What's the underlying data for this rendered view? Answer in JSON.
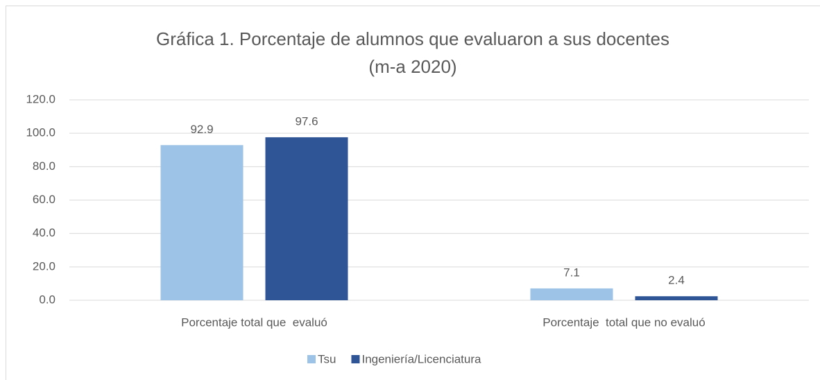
{
  "chart_data": {
    "type": "bar",
    "title": [
      "Gráfica 1. Porcentaje de alumnos que evaluaron a sus docentes",
      "(m-a 2020)"
    ],
    "categories": [
      "Porcentaje total que  evaluó",
      "Porcentaje  total que no evaluó"
    ],
    "series": [
      {
        "name": "Tsu",
        "color": "#9dc3e6",
        "values": [
          92.9,
          7.1
        ]
      },
      {
        "name": "Ingeniería/Licenciatura",
        "color": "#2f5597",
        "values": [
          97.6,
          2.4
        ]
      }
    ],
    "ylim": [
      0,
      120
    ],
    "yticks": [
      {
        "value": 0,
        "label": "0.0"
      },
      {
        "value": 20,
        "label": "20.0"
      },
      {
        "value": 40,
        "label": "40.0"
      },
      {
        "value": 60,
        "label": "60.0"
      },
      {
        "value": 80,
        "label": "80.0"
      },
      {
        "value": 100,
        "label": "100.0"
      },
      {
        "value": 120,
        "label": "120.0"
      }
    ],
    "grid": true,
    "legend": "bottom"
  }
}
